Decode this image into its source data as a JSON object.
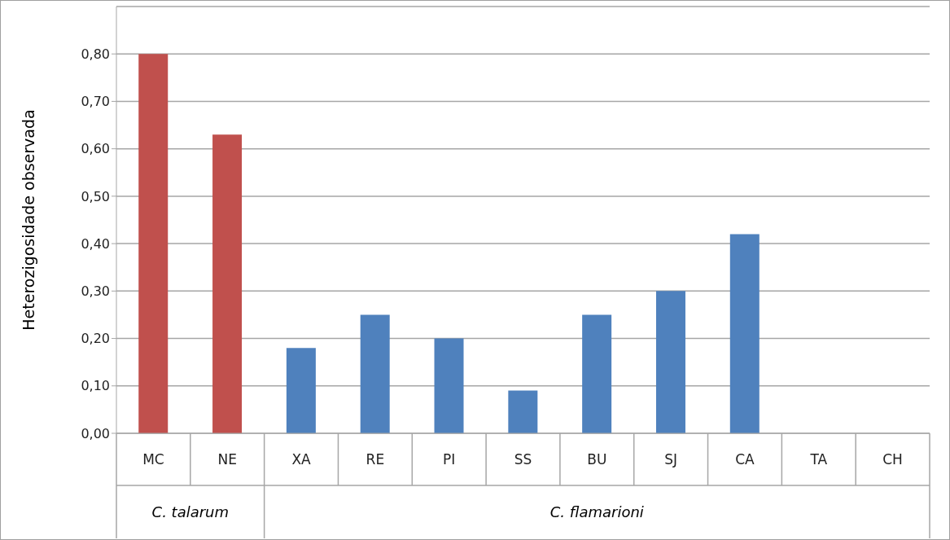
{
  "chart_data": {
    "type": "bar",
    "ylabel": "Heterozigosidade observada",
    "categories": [
      "MC",
      "NE",
      "XA",
      "RE",
      "PI",
      "SS",
      "BU",
      "SJ",
      "CA",
      "TA",
      "CH"
    ],
    "values": [
      0.8,
      0.63,
      0.18,
      0.25,
      0.2,
      0.09,
      0.25,
      0.3,
      0.42,
      0,
      0
    ],
    "colors": [
      "#c0504d",
      "#c0504d",
      "#4f81bd",
      "#4f81bd",
      "#4f81bd",
      "#4f81bd",
      "#4f81bd",
      "#4f81bd",
      "#4f81bd",
      "#4f81bd",
      "#4f81bd"
    ],
    "ylim": [
      0,
      0.9
    ],
    "yticks": [
      {
        "value": 0,
        "label": "0,00"
      },
      {
        "value": 0.1,
        "label": "0,10"
      },
      {
        "value": 0.2,
        "label": "0,20"
      },
      {
        "value": 0.3,
        "label": "0,30"
      },
      {
        "value": 0.4,
        "label": "0,40"
      },
      {
        "value": 0.5,
        "label": "0,50"
      },
      {
        "value": 0.6,
        "label": "0,60"
      },
      {
        "value": 0.7,
        "label": "0,70"
      },
      {
        "value": 0.8,
        "label": "0,80"
      }
    ],
    "grid": "y",
    "legend": false,
    "annotations": [
      "C. talarum",
      "C. flamarioni"
    ]
  }
}
